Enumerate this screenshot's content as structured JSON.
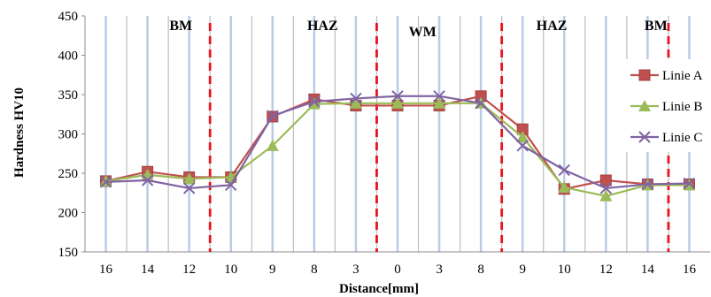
{
  "chart_data": {
    "type": "line",
    "categories": [
      "16",
      "14",
      "12",
      "10",
      "9",
      "8",
      "3",
      "0",
      "3",
      "8",
      "9",
      "10",
      "12",
      "14",
      "16"
    ],
    "xlabel": "Distance[mm]",
    "ylabel": "Hardness HV10",
    "ylim": [
      150,
      450
    ],
    "yticks": [
      150,
      200,
      250,
      300,
      350,
      400,
      450
    ],
    "grid": "vertical",
    "legend_position": "right",
    "zones": [
      {
        "label": "BM",
        "at_category": 1.8
      },
      {
        "label": "HAZ",
        "at_category": 5.2
      },
      {
        "label": "WM",
        "at_category": 7.6
      },
      {
        "label": "HAZ",
        "at_category": 10.7
      },
      {
        "label": "BM",
        "at_category": 13.2
      }
    ],
    "boundaries_after_category": [
      2.5,
      6.5,
      9.5,
      13.5
    ],
    "boundary_color": "#e8141c",
    "series": [
      {
        "name": "Linie A",
        "marker": "square",
        "color": "#c0504d",
        "values": [
          240,
          252,
          245,
          245,
          322,
          344,
          336,
          336,
          336,
          348,
          306,
          230,
          241,
          236,
          236
        ]
      },
      {
        "name": "Linie B",
        "marker": "triangle",
        "color": "#9bbb59",
        "values": [
          240,
          248,
          243,
          245,
          285,
          338,
          339,
          339,
          339,
          339,
          296,
          232,
          221,
          235,
          235
        ]
      },
      {
        "name": "Linie C",
        "marker": "cross",
        "color": "#8064a2",
        "values": [
          239,
          241,
          231,
          235,
          323,
          341,
          345,
          348,
          348,
          339,
          285,
          254,
          231,
          236,
          237
        ]
      }
    ]
  }
}
